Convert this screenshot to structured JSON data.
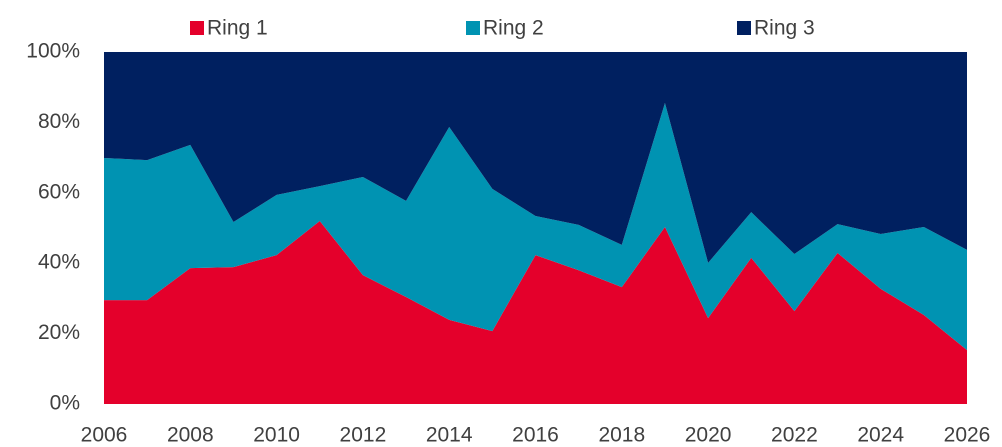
{
  "chart_data": {
    "type": "area",
    "stacked": true,
    "x": [
      2006,
      2007,
      2008,
      2009,
      2010,
      2011,
      2012,
      2013,
      2014,
      2015,
      2016,
      2017,
      2018,
      2019,
      2020,
      2021,
      2022,
      2023,
      2024,
      2025,
      2026
    ],
    "series": [
      {
        "name": "Ring 1",
        "color": "#e4002b",
        "values": [
          29.5,
          29.5,
          38.6,
          38.9,
          42.3,
          52.0,
          36.6,
          30.4,
          23.9,
          20.7,
          42.3,
          38.0,
          33.2,
          50.3,
          24.4,
          41.5,
          26.4,
          42.9,
          32.7,
          25.3,
          15.3
        ]
      },
      {
        "name": "Ring 2",
        "color": "#0093b2",
        "values": [
          40.4,
          39.8,
          35.0,
          12.8,
          17.1,
          9.9,
          27.9,
          27.3,
          54.8,
          40.4,
          11.1,
          12.9,
          12.0,
          35.2,
          15.7,
          13.0,
          16.2,
          8.2,
          15.6,
          25.0,
          28.5
        ]
      },
      {
        "name": "Ring 3",
        "color": "#002060",
        "values": [
          30.1,
          30.7,
          26.4,
          48.3,
          40.6,
          38.1,
          35.5,
          42.3,
          21.3,
          38.9,
          46.6,
          49.1,
          54.8,
          14.5,
          59.9,
          45.5,
          57.4,
          48.9,
          51.7,
          49.7,
          56.2
        ]
      }
    ],
    "xlim": [
      2006,
      2026
    ],
    "xticks": [
      2006,
      2008,
      2010,
      2012,
      2014,
      2016,
      2018,
      2020,
      2022,
      2024,
      2026
    ],
    "ylim": [
      0,
      100
    ],
    "yticks": [
      {
        "value": 0,
        "label": "0%"
      },
      {
        "value": 20,
        "label": "20%"
      },
      {
        "value": 40,
        "label": "40%"
      },
      {
        "value": 60,
        "label": "60%"
      },
      {
        "value": 80,
        "label": "80%"
      },
      {
        "value": 100,
        "label": "100%"
      }
    ],
    "legend": "top"
  }
}
